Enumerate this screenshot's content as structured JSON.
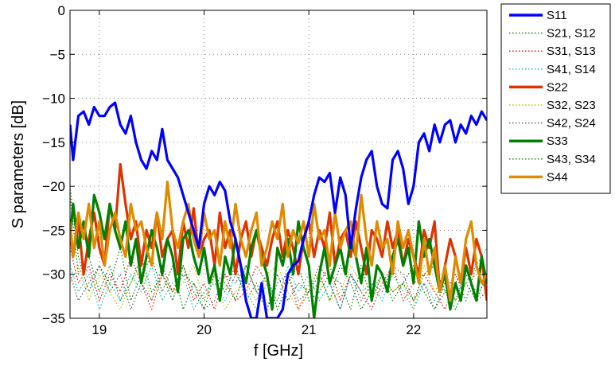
{
  "chart_data": {
    "type": "line",
    "title": "",
    "xlabel": "f [GHz]",
    "ylabel": "S parameters [dB]",
    "xlim": [
      18.72,
      22.7
    ],
    "ylim": [
      -35,
      0
    ],
    "x_ticks": [
      19,
      20,
      21,
      22
    ],
    "y_ticks": [
      0,
      -5,
      -10,
      -15,
      -20,
      -25,
      -30,
      -35
    ],
    "grid": true,
    "legend_position": "outside-right",
    "series": [
      {
        "name": "S11",
        "color": "#0000ff",
        "style": "solid",
        "x": [
          18.72,
          18.75,
          18.8,
          18.85,
          18.9,
          18.95,
          19.0,
          19.05,
          19.1,
          19.15,
          19.2,
          19.25,
          19.3,
          19.35,
          19.4,
          19.45,
          19.5,
          19.55,
          19.6,
          19.65,
          19.7,
          19.75,
          19.8,
          19.85,
          19.9,
          19.95,
          20.0,
          20.05,
          20.1,
          20.15,
          20.2,
          20.25,
          20.3,
          20.35,
          20.4,
          20.45,
          20.5,
          20.55,
          20.6,
          20.65,
          20.7,
          20.75,
          20.8,
          20.85,
          20.9,
          20.95,
          21.0,
          21.05,
          21.1,
          21.15,
          21.2,
          21.25,
          21.3,
          21.35,
          21.4,
          21.45,
          21.5,
          21.55,
          21.6,
          21.65,
          21.7,
          21.75,
          21.8,
          21.85,
          21.9,
          21.95,
          22.0,
          22.05,
          22.1,
          22.15,
          22.2,
          22.25,
          22.3,
          22.35,
          22.4,
          22.45,
          22.5,
          22.55,
          22.6,
          22.65,
          22.7
        ],
        "y": [
          -13,
          -17,
          -12,
          -11.5,
          -13,
          -11,
          -12,
          -12,
          -11,
          -10.5,
          -13,
          -14,
          -12,
          -15,
          -17,
          -18,
          -16,
          -17,
          -13.5,
          -17,
          -18,
          -19,
          -21,
          -23,
          -25,
          -27,
          -22,
          -20,
          -21,
          -19.5,
          -20.5,
          -24,
          -26,
          -29,
          -33,
          -35,
          -35,
          -31,
          -35,
          -35,
          -35,
          -34,
          -30,
          -29,
          -28.5,
          -26,
          -24,
          -21,
          -19,
          -19.5,
          -18.5,
          -23,
          -19,
          -21,
          -27,
          -22.5,
          -19,
          -17,
          -16,
          -20,
          -22,
          -22.5,
          -17,
          -16,
          -18,
          -22,
          -20,
          -15,
          -14,
          -16,
          -13,
          -15,
          -13,
          -12.5,
          -15,
          -13,
          -14,
          -12,
          -13,
          -11.5,
          -12.5
        ]
      },
      {
        "name": "S21, S12",
        "color": "#008000",
        "style": "dotted",
        "x": [
          18.72,
          18.8,
          18.9,
          19.0,
          19.1,
          19.2,
          19.3,
          19.4,
          19.5,
          19.6,
          19.7,
          19.8,
          19.9,
          20.0,
          20.1,
          20.2,
          20.3,
          20.4,
          20.5,
          20.6,
          20.7,
          20.8,
          20.9,
          21.0,
          21.1,
          21.2,
          21.3,
          21.4,
          21.5,
          21.6,
          21.7,
          21.8,
          21.9,
          22.0,
          22.1,
          22.2,
          22.3,
          22.4,
          22.5,
          22.6,
          22.7
        ],
        "y": [
          -20,
          -28,
          -32,
          -29,
          -31,
          -27,
          -33,
          -30,
          -28,
          -32,
          -29,
          -34,
          -31,
          -33,
          -30,
          -32,
          -29,
          -33,
          -31,
          -34,
          -30,
          -33,
          -31,
          -32,
          -30,
          -33,
          -29,
          -31,
          -34,
          -32,
          -30,
          -33,
          -31,
          -29,
          -32,
          -34,
          -31,
          -33,
          -30,
          -32,
          -31
        ]
      },
      {
        "name": "S31, S13",
        "color": "#ff0000",
        "style": "dotted",
        "x": [
          18.72,
          18.8,
          18.9,
          19.0,
          19.1,
          19.2,
          19.3,
          19.4,
          19.5,
          19.6,
          19.7,
          19.8,
          19.9,
          20.0,
          20.1,
          20.2,
          20.3,
          20.4,
          20.5,
          20.6,
          20.7,
          20.8,
          20.9,
          21.0,
          21.1,
          21.2,
          21.3,
          21.4,
          21.5,
          21.6,
          21.7,
          21.8,
          21.9,
          22.0,
          22.1,
          22.2,
          22.3,
          22.4,
          22.5,
          22.6,
          22.7
        ],
        "y": [
          -27,
          -31,
          -29,
          -33,
          -30,
          -32,
          -28,
          -31,
          -34,
          -30,
          -32,
          -29,
          -33,
          -31,
          -34,
          -30,
          -33,
          -32,
          -29,
          -31,
          -33,
          -30,
          -34,
          -32,
          -31,
          -29,
          -33,
          -30,
          -32,
          -34,
          -31,
          -29,
          -33,
          -31,
          -30,
          -32,
          -34,
          -31,
          -29,
          -33,
          -32
        ]
      },
      {
        "name": "S41, S14",
        "color": "#00bfbf",
        "style": "dotted",
        "x": [
          18.72,
          18.8,
          18.9,
          19.0,
          19.1,
          19.2,
          19.3,
          19.4,
          19.5,
          19.6,
          19.7,
          19.8,
          19.9,
          20.0,
          20.1,
          20.2,
          20.3,
          20.4,
          20.5,
          20.6,
          20.7,
          20.8,
          20.9,
          21.0,
          21.1,
          21.2,
          21.3,
          21.4,
          21.5,
          21.6,
          21.7,
          21.8,
          21.9,
          22.0,
          22.1,
          22.2,
          22.3,
          22.4,
          22.5,
          22.6,
          22.7
        ],
        "y": [
          -29,
          -32,
          -30,
          -34,
          -31,
          -33,
          -30,
          -32,
          -29,
          -33,
          -31,
          -30,
          -34,
          -32,
          -31,
          -33,
          -30,
          -32,
          -34,
          -31,
          -33,
          -29,
          -32,
          -30,
          -33,
          -31,
          -34,
          -30,
          -32,
          -31,
          -33,
          -30,
          -32,
          -34,
          -31,
          -33,
          -30,
          -32,
          -31,
          -29,
          -27
        ]
      },
      {
        "name": "S22",
        "color": "#dd3300",
        "style": "solid",
        "x": [
          18.72,
          18.75,
          18.8,
          18.85,
          18.9,
          18.95,
          19.0,
          19.05,
          19.1,
          19.15,
          19.2,
          19.25,
          19.3,
          19.35,
          19.4,
          19.45,
          19.5,
          19.55,
          19.6,
          19.65,
          19.7,
          19.75,
          19.8,
          19.85,
          19.9,
          19.95,
          20.0,
          20.05,
          20.1,
          20.15,
          20.2,
          20.25,
          20.3,
          20.35,
          20.4,
          20.45,
          20.5,
          20.55,
          20.6,
          20.65,
          20.7,
          20.75,
          20.8,
          20.85,
          20.9,
          20.95,
          21.0,
          21.05,
          21.1,
          21.15,
          21.2,
          21.25,
          21.3,
          21.35,
          21.4,
          21.45,
          21.5,
          21.55,
          21.6,
          21.65,
          21.7,
          21.75,
          21.8,
          21.85,
          21.9,
          21.95,
          22.0,
          22.05,
          22.1,
          22.15,
          22.2,
          22.25,
          22.3,
          22.35,
          22.4,
          22.45,
          22.5,
          22.55,
          22.6,
          22.65,
          22.7
        ],
        "y": [
          -25,
          -28,
          -24,
          -30,
          -26,
          -23,
          -27,
          -29,
          -22,
          -25,
          -17.5,
          -22,
          -26,
          -24,
          -29,
          -25,
          -27,
          -23,
          -28,
          -26,
          -25,
          -30,
          -24,
          -27,
          -22.5,
          -28,
          -26,
          -25,
          -29,
          -23,
          -27,
          -25,
          -30,
          -26,
          -24,
          -28,
          -25,
          -27,
          -29,
          -26,
          -24,
          -28,
          -25,
          -27,
          -30,
          -26,
          -24,
          -28,
          -25,
          -27,
          -23,
          -29,
          -26,
          -25,
          -28,
          -24,
          -27,
          -30,
          -25,
          -26,
          -28,
          -24,
          -27,
          -25,
          -29,
          -26,
          -28,
          -30,
          -25,
          -27,
          -24,
          -32,
          -29,
          -26,
          -28,
          -31,
          -27,
          -30,
          -26,
          -28,
          -33
        ]
      },
      {
        "name": "S32, S23",
        "color": "#bfbf00",
        "style": "dotted",
        "x": [
          18.72,
          18.8,
          18.9,
          19.0,
          19.1,
          19.2,
          19.3,
          19.4,
          19.5,
          19.6,
          19.7,
          19.8,
          19.9,
          20.0,
          20.1,
          20.2,
          20.3,
          20.4,
          20.5,
          20.6,
          20.7,
          20.8,
          20.9,
          21.0,
          21.1,
          21.2,
          21.3,
          21.4,
          21.5,
          21.6,
          21.7,
          21.8,
          21.9,
          22.0,
          22.1,
          22.2,
          22.3,
          22.4,
          22.5,
          22.6,
          22.7
        ],
        "y": [
          -31,
          -29,
          -33,
          -30,
          -32,
          -34,
          -31,
          -29,
          -33,
          -30,
          -32,
          -31,
          -29,
          -33,
          -30,
          -34,
          -32,
          -31,
          -33,
          -30,
          -29,
          -32,
          -34,
          -31,
          -30,
          -33,
          -32,
          -29,
          -31,
          -33,
          -30,
          -32,
          -31,
          -34,
          -29,
          -32,
          -30,
          -33,
          -31,
          -30,
          -32
        ]
      },
      {
        "name": "S42, S24",
        "color": "#555555",
        "style": "dotted",
        "x": [
          18.72,
          18.8,
          18.9,
          19.0,
          19.1,
          19.2,
          19.3,
          19.4,
          19.5,
          19.6,
          19.7,
          19.8,
          19.9,
          20.0,
          20.1,
          20.2,
          20.3,
          20.4,
          20.5,
          20.6,
          20.7,
          20.8,
          20.9,
          21.0,
          21.1,
          21.2,
          21.3,
          21.4,
          21.5,
          21.6,
          21.7,
          21.8,
          21.9,
          22.0,
          22.1,
          22.2,
          22.3,
          22.4,
          22.5,
          22.6,
          22.7
        ],
        "y": [
          -30,
          -33,
          -31,
          -29,
          -32,
          -30,
          -34,
          -31,
          -33,
          -29,
          -32,
          -30,
          -31,
          -34,
          -33,
          -30,
          -31,
          -29,
          -32,
          -34,
          -31,
          -30,
          -33,
          -32,
          -29,
          -31,
          -34,
          -30,
          -33,
          -31,
          -32,
          -29,
          -30,
          -33,
          -31,
          -34,
          -32,
          -30,
          -33,
          -29,
          -31
        ]
      },
      {
        "name": "S33",
        "color": "#008000",
        "style": "solid",
        "x": [
          18.72,
          18.75,
          18.8,
          18.85,
          18.9,
          18.95,
          19.0,
          19.05,
          19.1,
          19.15,
          19.2,
          19.25,
          19.3,
          19.35,
          19.4,
          19.45,
          19.5,
          19.55,
          19.6,
          19.65,
          19.7,
          19.75,
          19.8,
          19.85,
          19.9,
          19.95,
          20.0,
          20.05,
          20.1,
          20.15,
          20.2,
          20.25,
          20.3,
          20.35,
          20.4,
          20.45,
          20.5,
          20.55,
          20.6,
          20.65,
          20.7,
          20.75,
          20.8,
          20.85,
          20.9,
          20.95,
          21.0,
          21.05,
          21.1,
          21.15,
          21.2,
          21.25,
          21.3,
          21.35,
          21.4,
          21.45,
          21.5,
          21.55,
          21.6,
          21.65,
          21.7,
          21.75,
          21.8,
          21.85,
          21.9,
          21.95,
          22.0,
          22.05,
          22.1,
          22.15,
          22.2,
          22.25,
          22.3,
          22.35,
          22.4,
          22.45,
          22.5,
          22.55,
          22.6,
          22.65,
          22.7
        ],
        "y": [
          -26,
          -22,
          -27,
          -24,
          -28,
          -21,
          -23,
          -26,
          -22,
          -25,
          -27,
          -24,
          -29,
          -26,
          -31,
          -28,
          -25,
          -27,
          -30,
          -26,
          -28,
          -32,
          -26,
          -25,
          -28,
          -30,
          -27,
          -31,
          -29,
          -33,
          -28,
          -30,
          -26,
          -29,
          -31,
          -27,
          -25,
          -28,
          -30,
          -34,
          -27,
          -29,
          -26,
          -30,
          -24,
          -27,
          -29,
          -35,
          -30,
          -27,
          -31,
          -29,
          -27,
          -30,
          -26,
          -28,
          -31,
          -27,
          -33,
          -29,
          -30,
          -32,
          -28,
          -26,
          -29,
          -27,
          -31,
          -24,
          -28,
          -26,
          -29,
          -32,
          -30,
          -34,
          -31,
          -33,
          -29,
          -31,
          -33,
          -28,
          -31
        ]
      },
      {
        "name": "S43, S34",
        "color": "#008000",
        "style": "dotted",
        "x": [
          18.72,
          18.8,
          18.9,
          19.0,
          19.1,
          19.2,
          19.3,
          19.4,
          19.5,
          19.6,
          19.7,
          19.8,
          19.9,
          20.0,
          20.1,
          20.2,
          20.3,
          20.4,
          20.5,
          20.6,
          20.7,
          20.8,
          20.9,
          21.0,
          21.1,
          21.2,
          21.3,
          21.4,
          21.5,
          21.6,
          21.7,
          21.8,
          21.9,
          22.0,
          22.1,
          22.2,
          22.3,
          22.4,
          22.5,
          22.6,
          22.7
        ],
        "y": [
          -21,
          -30,
          -28,
          -32,
          -29,
          -33,
          -31,
          -28,
          -32,
          -30,
          -33,
          -29,
          -32,
          -34,
          -30,
          -31,
          -33,
          -29,
          -32,
          -30,
          -34,
          -31,
          -29,
          -33,
          -32,
          -30,
          -31,
          -34,
          -29,
          -33,
          -30,
          -32,
          -31,
          -33,
          -30,
          -29,
          -32,
          -34,
          -31,
          -33,
          -30
        ]
      },
      {
        "name": "S44",
        "color": "#e08a00",
        "style": "solid",
        "x": [
          18.72,
          18.75,
          18.8,
          18.85,
          18.9,
          18.95,
          19.0,
          19.05,
          19.1,
          19.15,
          19.2,
          19.25,
          19.3,
          19.35,
          19.4,
          19.45,
          19.5,
          19.55,
          19.6,
          19.65,
          19.7,
          19.75,
          19.8,
          19.85,
          19.9,
          19.95,
          20.0,
          20.05,
          20.1,
          20.15,
          20.2,
          20.25,
          20.3,
          20.35,
          20.4,
          20.45,
          20.5,
          20.55,
          20.6,
          20.65,
          20.7,
          20.75,
          20.8,
          20.85,
          20.9,
          20.95,
          21.0,
          21.05,
          21.1,
          21.15,
          21.2,
          21.25,
          21.3,
          21.35,
          21.4,
          21.45,
          21.5,
          21.55,
          21.6,
          21.65,
          21.7,
          21.75,
          21.8,
          21.85,
          21.9,
          21.95,
          22.0,
          22.05,
          22.1,
          22.15,
          22.2,
          22.25,
          22.3,
          22.35,
          22.4,
          22.45,
          22.5,
          22.55,
          22.6,
          22.65,
          22.7
        ],
        "y": [
          -24,
          -28,
          -23,
          -26,
          -22,
          -27,
          -24,
          -29,
          -25,
          -23,
          -26,
          -28,
          -22,
          -25,
          -24,
          -27,
          -29,
          -23,
          -26,
          -19.5,
          -25,
          -27,
          -24,
          -22,
          -26,
          -28,
          -23,
          -26,
          -25,
          -29,
          -24,
          -27,
          -22,
          -26,
          -28,
          -25,
          -23,
          -29,
          -27,
          -24,
          -26,
          -22,
          -28,
          -25,
          -26.5,
          -24,
          -28,
          -22,
          -26,
          -25,
          -29,
          -23,
          -27,
          -25,
          -24,
          -28,
          -21,
          -26,
          -29,
          -24,
          -27,
          -26,
          -30,
          -24,
          -27,
          -25,
          -28,
          -31,
          -26,
          -30,
          -27,
          -32,
          -29,
          -33,
          -28,
          -31,
          -26,
          -24,
          -29,
          -31,
          -30
        ]
      }
    ]
  }
}
